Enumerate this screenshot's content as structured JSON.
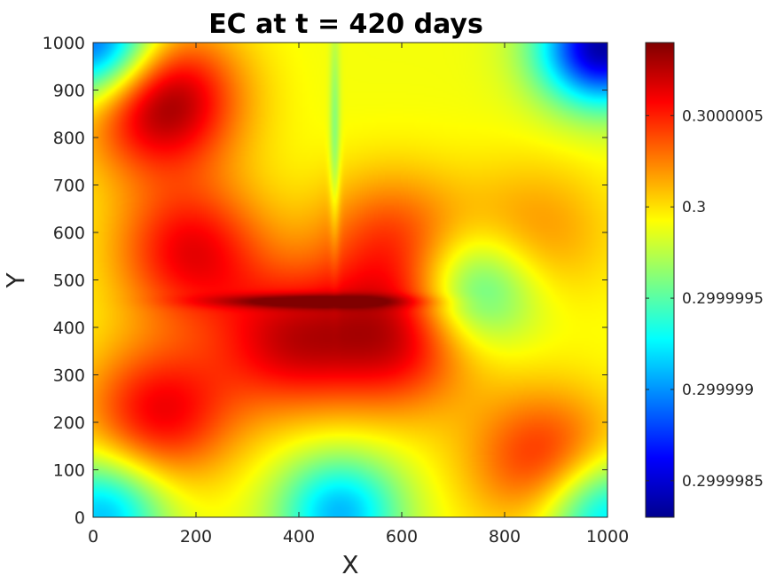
{
  "chart_data": {
    "type": "heatmap",
    "title": "EC at t = 420 days",
    "xlabel": "X",
    "ylabel": "Y",
    "xlim": [
      0,
      1000
    ],
    "ylim": [
      0,
      1000
    ],
    "xticks": [
      "0",
      "200",
      "400",
      "600",
      "800",
      "1000"
    ],
    "yticks": [
      "0",
      "100",
      "200",
      "300",
      "400",
      "500",
      "600",
      "700",
      "800",
      "900",
      "1000"
    ],
    "colormap": "jet",
    "colorbar": {
      "range": [
        0.2999983,
        0.3000009
      ],
      "ticks": [
        {
          "value": 0.2999985,
          "label": "0.2999985"
        },
        {
          "value": 0.299999,
          "label": "0.299999"
        },
        {
          "value": 0.2999995,
          "label": "0.2999995"
        },
        {
          "value": 0.3,
          "label": "0.3"
        },
        {
          "value": 0.3000005,
          "label": "0.3000005"
        }
      ]
    },
    "features": [
      {
        "kind": "max",
        "x": 130,
        "y": 880,
        "value": 0.3000009
      },
      {
        "kind": "max",
        "x": 190,
        "y": 560,
        "value": 0.3000006
      },
      {
        "kind": "max",
        "x": 130,
        "y": 220,
        "value": 0.3000006
      },
      {
        "kind": "max",
        "x": 380,
        "y": 370,
        "value": 0.3000006
      },
      {
        "kind": "max",
        "x": 590,
        "y": 370,
        "value": 0.3000006
      },
      {
        "kind": "max",
        "x": 580,
        "y": 580,
        "value": 0.3000004
      },
      {
        "kind": "max",
        "x": 880,
        "y": 120,
        "value": 0.3000005
      },
      {
        "kind": "max",
        "x": 860,
        "y": 600,
        "value": 0.3000002
      },
      {
        "kind": "min",
        "x": 740,
        "y": 480,
        "value": 0.2999993
      },
      {
        "kind": "min",
        "x": 10,
        "y": 990,
        "value": 0.2999987
      },
      {
        "kind": "min",
        "x": 990,
        "y": 990,
        "value": 0.2999984
      },
      {
        "kind": "min",
        "x": 20,
        "y": 10,
        "value": 0.2999991
      },
      {
        "kind": "min",
        "x": 990,
        "y": 10,
        "value": 0.2999991
      },
      {
        "kind": "min",
        "x": 480,
        "y": 10,
        "value": 0.2999991
      }
    ]
  }
}
